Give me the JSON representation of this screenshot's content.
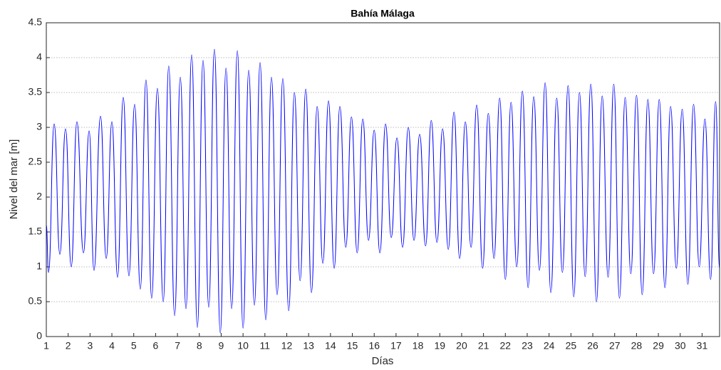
{
  "chart_data": {
    "type": "line",
    "title": "Bahía Málaga",
    "x_label": "Días",
    "y_label": "Nivel del mar [m]",
    "x": [
      1.0,
      1.1,
      1.36,
      1.62,
      1.88,
      2.14,
      2.4,
      2.7,
      2.96,
      3.18,
      3.48,
      3.74,
      4.0,
      4.26,
      4.52,
      4.78,
      5.04,
      5.3,
      5.56,
      5.82,
      6.08,
      6.35,
      6.6,
      6.87,
      7.13,
      7.39,
      7.65,
      7.91,
      8.17,
      8.43,
      8.69,
      8.96,
      9.22,
      9.48,
      9.74,
      10.0,
      10.26,
      10.52,
      10.78,
      11.04,
      11.3,
      11.56,
      11.82,
      12.09,
      12.35,
      12.61,
      12.87,
      13.13,
      13.39,
      13.65,
      13.91,
      14.17,
      14.43,
      14.7,
      14.96,
      15.22,
      15.48,
      15.74,
      16.0,
      16.26,
      16.52,
      16.78,
      17.04,
      17.3,
      17.56,
      17.82,
      18.08,
      18.35,
      18.61,
      18.87,
      19.13,
      19.39,
      19.65,
      19.91,
      20.17,
      20.43,
      20.69,
      20.96,
      21.22,
      21.48,
      21.74,
      22.0,
      22.26,
      22.52,
      22.78,
      23.04,
      23.3,
      23.56,
      23.82,
      24.08,
      24.35,
      24.61,
      24.87,
      25.13,
      25.39,
      25.65,
      25.91,
      26.17,
      26.43,
      26.7,
      26.96,
      27.22,
      27.48,
      27.74,
      28.0,
      28.26,
      28.52,
      28.78,
      29.04,
      29.3,
      29.56,
      29.82,
      30.09,
      30.35,
      30.61,
      30.87,
      31.13,
      31.39,
      31.62,
      31.8
    ],
    "series": [
      {
        "color": "#0000ff",
        "values": [
          1.6,
          0.92,
          3.05,
          1.18,
          2.98,
          1.0,
          3.08,
          1.2,
          2.95,
          0.95,
          3.16,
          1.12,
          3.08,
          0.85,
          3.43,
          0.87,
          3.33,
          0.68,
          3.68,
          0.55,
          3.56,
          0.5,
          3.88,
          0.3,
          3.72,
          0.4,
          4.04,
          0.13,
          3.96,
          0.42,
          4.12,
          0.05,
          3.85,
          0.4,
          4.1,
          0.12,
          3.82,
          0.45,
          3.93,
          0.24,
          3.72,
          0.6,
          3.7,
          0.37,
          3.5,
          0.8,
          3.55,
          0.63,
          3.3,
          1.05,
          3.38,
          0.98,
          3.3,
          1.28,
          3.15,
          1.2,
          3.12,
          1.38,
          2.96,
          1.2,
          3.05,
          1.42,
          2.85,
          1.28,
          3.0,
          1.38,
          2.9,
          1.3,
          3.1,
          1.35,
          2.98,
          1.25,
          3.22,
          1.12,
          3.08,
          1.28,
          3.32,
          0.98,
          3.2,
          1.12,
          3.42,
          0.82,
          3.36,
          1.0,
          3.52,
          0.7,
          3.44,
          0.95,
          3.64,
          0.63,
          3.42,
          0.92,
          3.6,
          0.57,
          3.5,
          0.86,
          3.62,
          0.5,
          3.45,
          0.85,
          3.62,
          0.55,
          3.43,
          0.9,
          3.46,
          0.6,
          3.4,
          0.9,
          3.4,
          0.7,
          3.3,
          0.98,
          3.26,
          0.75,
          3.33,
          1.0,
          3.12,
          0.82,
          3.37,
          0.97
        ]
      }
    ],
    "xlim": [
      1,
      31.8
    ],
    "xticks": [
      1,
      2,
      3,
      4,
      5,
      6,
      7,
      8,
      9,
      10,
      11,
      12,
      13,
      14,
      15,
      16,
      17,
      18,
      19,
      20,
      21,
      22,
      23,
      24,
      25,
      26,
      27,
      28,
      29,
      30,
      31
    ],
    "ylim": [
      0,
      4.5
    ],
    "yticks": [
      0,
      0.5,
      1,
      1.5,
      2,
      2.5,
      3,
      3.5,
      4,
      4.5
    ],
    "grid": true
  }
}
